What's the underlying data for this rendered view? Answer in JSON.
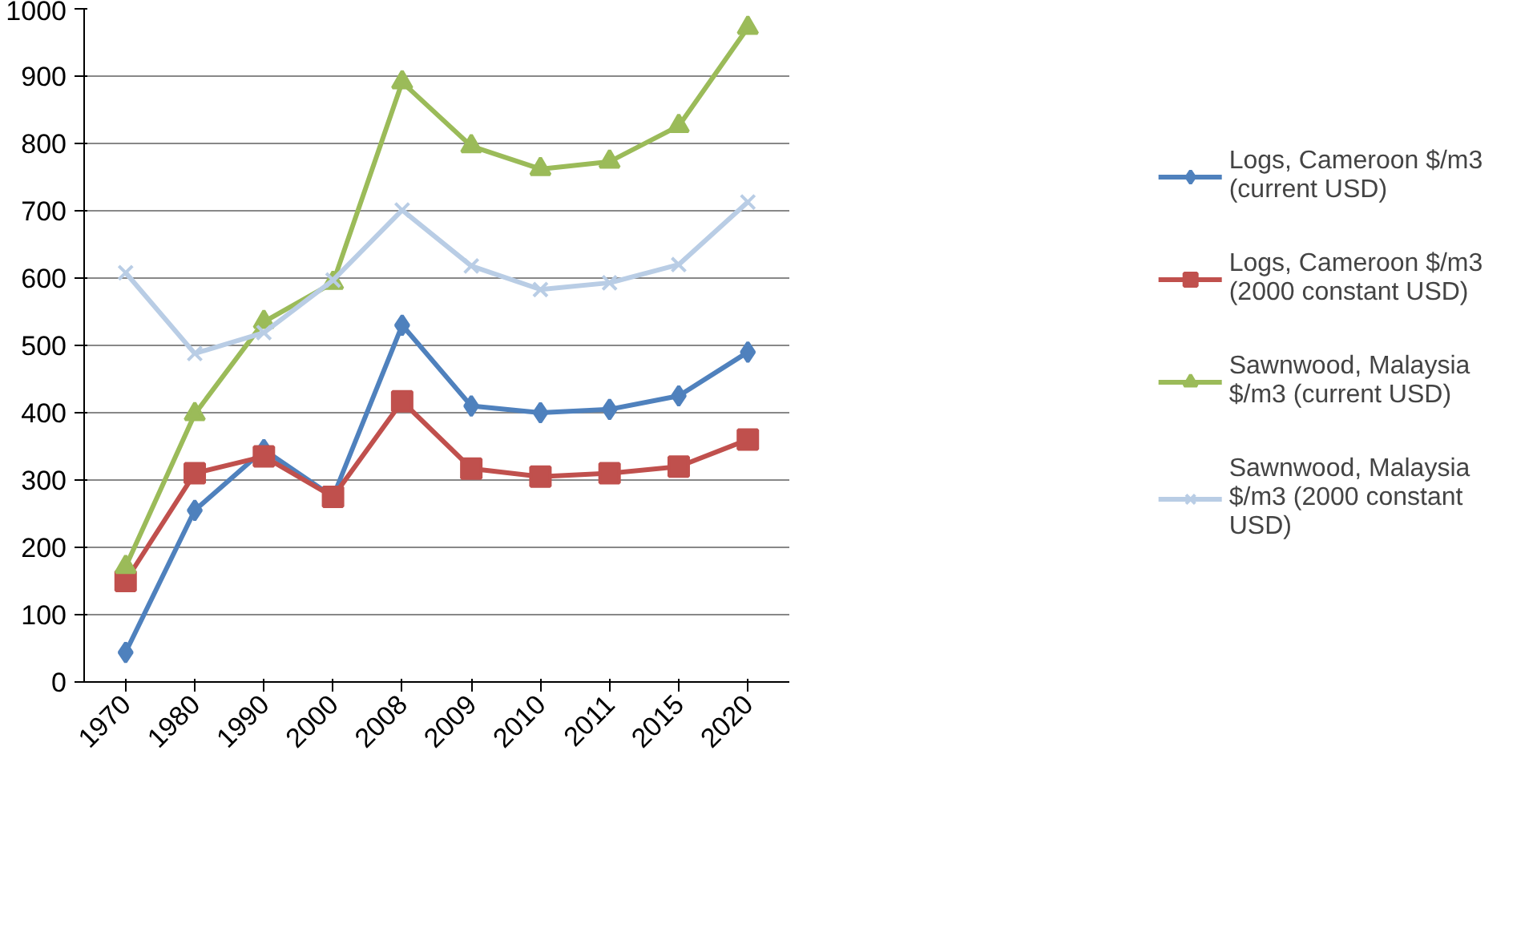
{
  "chart_data": {
    "type": "line",
    "categories": [
      "1970",
      "1980",
      "1990",
      "2000",
      "2008",
      "2009",
      "2010",
      "2011",
      "2015",
      "2020"
    ],
    "series": [
      {
        "name": "Logs, Cameroon $/m3 (current USD)",
        "color": "#4f81bd",
        "marker": "diamond",
        "values": [
          44,
          255,
          345,
          275,
          530,
          410,
          400,
          405,
          425,
          490
        ]
      },
      {
        "name": "Logs, Cameroon $/m3 (2000 constant USD)",
        "color": "#c0504d",
        "marker": "square",
        "values": [
          150,
          310,
          335,
          275,
          417,
          317,
          305,
          310,
          320,
          360
        ]
      },
      {
        "name": "Sawnwood, Malaysia $/m3 (current USD)",
        "color": "#9bbb59",
        "marker": "triangle",
        "values": [
          171,
          398,
          535,
          593,
          891,
          796,
          762,
          773,
          826,
          972
        ]
      },
      {
        "name": "Sawnwood, Malaysia $/m3 (2000 constant USD)",
        "color": "#b9cde5",
        "marker": "cross",
        "values": [
          608,
          488,
          519,
          597,
          701,
          618,
          583,
          593,
          620,
          713
        ]
      }
    ],
    "ylim": [
      0,
      1000
    ],
    "yticks": [
      0,
      100,
      200,
      300,
      400,
      500,
      600,
      700,
      800,
      900,
      1000
    ],
    "grid": "y",
    "legend": "right",
    "line_style": "solid"
  }
}
